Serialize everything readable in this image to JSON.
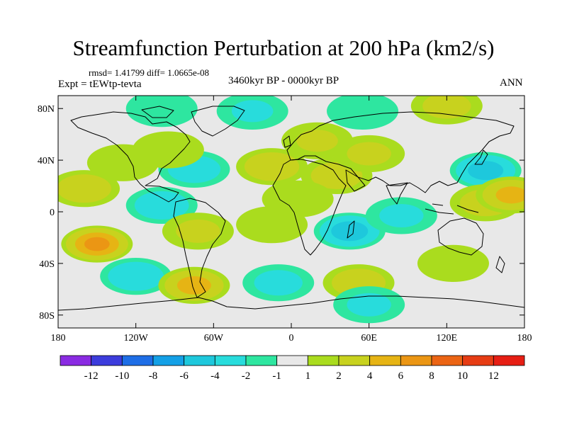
{
  "title": "Streamfunction Perturbation at 200 hPa (km2/s)",
  "stats": "rmsd= 1.41799  diff= 1.0665e-08",
  "experiment": "Expt = tEWtp-tevta",
  "period": "3460kyr BP - 0000kyr BP",
  "season": "ANN",
  "map": {
    "projection": "cylindrical-equidistant",
    "lon_range": [
      -180,
      180
    ],
    "lat_range": [
      -90,
      90
    ],
    "lat_ticks": [
      {
        "value": 80,
        "label": "80N"
      },
      {
        "value": 40,
        "label": "40N"
      },
      {
        "value": 0,
        "label": "0"
      },
      {
        "value": -40,
        "label": "40S"
      },
      {
        "value": -80,
        "label": "80S"
      }
    ],
    "lon_ticks": [
      {
        "value": -180,
        "label": "180"
      },
      {
        "value": -120,
        "label": "120W"
      },
      {
        "value": -60,
        "label": "60W"
      },
      {
        "value": 0,
        "label": "0"
      },
      {
        "value": 60,
        "label": "60E"
      },
      {
        "value": 120,
        "label": "120E"
      },
      {
        "value": 180,
        "label": "180"
      }
    ]
  },
  "colorbar": {
    "levels": [
      "-12",
      "-10",
      "-8",
      "-6",
      "-4",
      "-2",
      "-1",
      "1",
      "2",
      "4",
      "6",
      "8",
      "10",
      "12"
    ],
    "colors": [
      "#8a2be2",
      "#3c3cdc",
      "#1e6ee6",
      "#14a0e6",
      "#1ec8dc",
      "#28dcdc",
      "#2ee6a0",
      "#e8e8e8",
      "#aadc1e",
      "#c8d21e",
      "#e6b414",
      "#eb9614",
      "#eb6414",
      "#e63c14",
      "#e61e14"
    ]
  },
  "field_centers": [
    {
      "lon": -150,
      "lat": -25,
      "value": 6.5
    },
    {
      "lon": -160,
      "lat": 18,
      "value": 3.5
    },
    {
      "lon": -130,
      "lat": 38,
      "value": 1.7
    },
    {
      "lon": -100,
      "lat": 5,
      "value": -3.5
    },
    {
      "lon": -75,
      "lat": 33,
      "value": -3.2
    },
    {
      "lon": -95,
      "lat": 48,
      "value": 1.8
    },
    {
      "lon": -72,
      "lat": -15,
      "value": 2.2
    },
    {
      "lon": -15,
      "lat": -10,
      "value": 1.5
    },
    {
      "lon": -120,
      "lat": -50,
      "value": -3.8
    },
    {
      "lon": -75,
      "lat": -57,
      "value": 4.8
    },
    {
      "lon": -10,
      "lat": -55,
      "value": -2.6
    },
    {
      "lon": -15,
      "lat": 35,
      "value": 3.6
    },
    {
      "lon": 20,
      "lat": 55,
      "value": 2.0
    },
    {
      "lon": 35,
      "lat": 28,
      "value": 3.0
    },
    {
      "lon": 45,
      "lat": -15,
      "value": -5.2
    },
    {
      "lon": 52,
      "lat": -55,
      "value": 3.4
    },
    {
      "lon": 5,
      "lat": 10,
      "value": 1.3
    },
    {
      "lon": 60,
      "lat": 45,
      "value": 2.2
    },
    {
      "lon": 85,
      "lat": -3,
      "value": -2.2
    },
    {
      "lon": 55,
      "lat": 78,
      "value": -1.6
    },
    {
      "lon": 150,
      "lat": 32,
      "value": -5.0
    },
    {
      "lon": 150,
      "lat": 7,
      "value": 3.0
    },
    {
      "lon": 170,
      "lat": 13,
      "value": 4.5
    },
    {
      "lon": 120,
      "lat": 82,
      "value": 2.6
    },
    {
      "lon": 125,
      "lat": -40,
      "value": 1.5
    },
    {
      "lon": 60,
      "lat": -72,
      "value": -2.2
    },
    {
      "lon": -100,
      "lat": 80,
      "value": -1.6
    },
    {
      "lon": -30,
      "lat": 78,
      "value": -2.0
    }
  ]
}
